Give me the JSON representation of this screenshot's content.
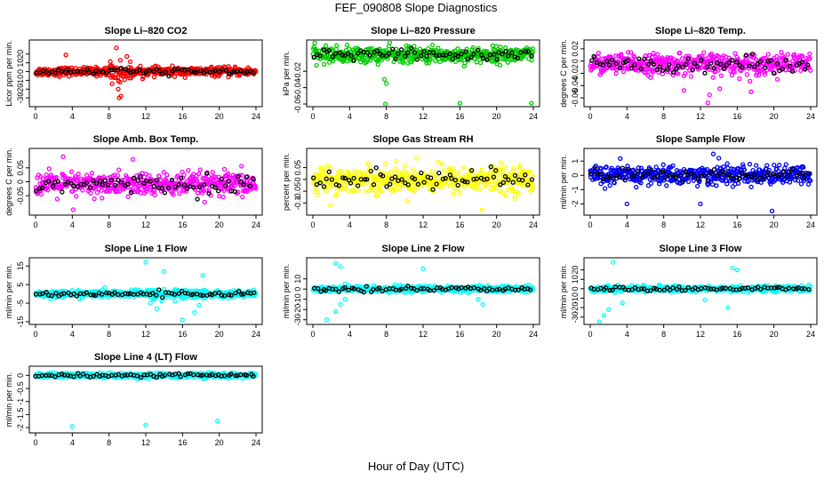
{
  "figure": {
    "title": "FEF_090808  Slope Diagnostics",
    "xlabel": "Hour of Day (UTC)"
  },
  "chart_data": [
    {
      "type": "scatter",
      "title": "Slope Li–820 CO2",
      "ylabel": "Licor ppm per min.",
      "xlim": [
        0,
        24
      ],
      "xticks": [
        0,
        4,
        8,
        12,
        16,
        20,
        24
      ],
      "ylim": [
        -37,
        33
      ],
      "yticks": [
        -30,
        -20,
        -10,
        0,
        10,
        20
      ],
      "color": "#ff0000",
      "spread": 4,
      "outliers": [
        [
          3.3,
          19
        ],
        [
          8.8,
          27
        ],
        [
          9.0,
          -20
        ],
        [
          9.1,
          -30
        ],
        [
          9.3,
          -28
        ],
        [
          9.2,
          -12
        ]
      ],
      "series": [
        {
          "color": "#ff0000",
          "description": "main points"
        },
        {
          "color": "#000000",
          "description": "black points"
        }
      ]
    },
    {
      "type": "scatter",
      "title": "Slope Li–820 Pressure",
      "ylabel": "kPa per min.",
      "xlim": [
        0,
        24
      ],
      "xticks": [
        0,
        4,
        8,
        12,
        16,
        20,
        24
      ],
      "ylim": [
        -0.06,
        0.015
      ],
      "yticks": [
        -0.06,
        -0.04,
        -0.02
      ],
      "color": "#00cc00",
      "spread": 0.008,
      "outliers": [
        [
          8.0,
          -0.035
        ],
        [
          7.8,
          -0.03
        ],
        [
          16.0,
          -0.059
        ],
        [
          7.9,
          -0.06
        ],
        [
          23.8,
          -0.059
        ]
      ],
      "series": [
        {
          "color": "#00cc00",
          "description": "main points"
        },
        {
          "color": "#000000",
          "description": "black points"
        }
      ]
    },
    {
      "type": "scatter",
      "title": "Slope Li–820 Temp.",
      "ylabel": "degrees C per min.",
      "xlim": [
        0,
        24
      ],
      "xticks": [
        0,
        4,
        8,
        12,
        16,
        20,
        24
      ],
      "ylim": [
        -0.07,
        0.03
      ],
      "yticks": [
        -0.06,
        -0.04,
        -0.02,
        0.0,
        0.02
      ],
      "color": "#ff00ff",
      "spread": 0.014,
      "outliers": [
        [
          12.8,
          -0.068
        ],
        [
          13.0,
          -0.055
        ],
        [
          10.2,
          -0.048
        ],
        [
          14.1,
          -0.045
        ],
        [
          17.5,
          -0.05
        ]
      ],
      "series": [
        {
          "color": "#ff00ff",
          "description": "main points"
        },
        {
          "color": "#000000",
          "description": "black points"
        }
      ]
    },
    {
      "type": "scatter",
      "title": "Slope Amb. Box Temp.",
      "ylabel": "degrees C per min.",
      "xlim": [
        0,
        24
      ],
      "xticks": [
        0,
        4,
        8,
        12,
        16,
        20,
        24
      ],
      "ylim": [
        -0.11,
        0.11
      ],
      "yticks": [
        -0.05,
        0.0,
        0.05
      ],
      "color": "#ff00ff",
      "spread": 0.035,
      "outliers": [
        [
          3.0,
          0.09
        ],
        [
          10.6,
          0.08
        ],
        [
          4.1,
          -0.1
        ]
      ],
      "series": [
        {
          "color": "#ff00ff",
          "description": "main points"
        },
        {
          "color": "#000000",
          "description": "black points"
        }
      ]
    },
    {
      "type": "scatter",
      "title": "Slope Gas Stream RH",
      "ylabel": "percent per min.",
      "xlim": [
        0,
        24
      ],
      "xticks": [
        0,
        4,
        8,
        12,
        16,
        20,
        24
      ],
      "ylim": [
        -0.14,
        0.12
      ],
      "yticks": [
        -0.1,
        -0.05,
        0.0,
        0.05
      ],
      "color": "#ffff00",
      "spread": 0.045,
      "outliers": [
        [
          18.4,
          -0.13
        ],
        [
          1.9,
          -0.11
        ],
        [
          11.3,
          0.09
        ]
      ],
      "series": [
        {
          "color": "#ffff00",
          "description": "main points"
        },
        {
          "color": "#000000",
          "description": "black points"
        }
      ]
    },
    {
      "type": "scatter",
      "title": "Slope Sample Flow",
      "ylabel": "ml/min per min.",
      "xlim": [
        0,
        24
      ],
      "xticks": [
        0,
        4,
        8,
        12,
        16,
        20,
        24
      ],
      "ylim": [
        -2.6,
        1.7
      ],
      "yticks": [
        -2,
        -1,
        0,
        1
      ],
      "color": "#0000ff",
      "spread": 0.55,
      "outliers": [
        [
          19.8,
          -2.5
        ],
        [
          12.0,
          -2.0
        ],
        [
          4.0,
          -2.0
        ],
        [
          13.4,
          1.5
        ],
        [
          14.0,
          1.2
        ]
      ],
      "series": [
        {
          "color": "#0000ff",
          "description": "main points"
        },
        {
          "color": "#000000",
          "description": "black points"
        }
      ]
    },
    {
      "type": "scatter",
      "title": "Slope Line 1 Flow",
      "ylabel": "ml/min per min.",
      "xlim": [
        0,
        24
      ],
      "xticks": [
        0,
        4,
        8,
        12,
        16,
        20,
        24
      ],
      "ylim": [
        -15,
        18
      ],
      "yticks": [
        -15,
        -5,
        5,
        15
      ],
      "color": "#00ffff",
      "spread": 1.5,
      "outliers": [
        [
          12.0,
          17
        ],
        [
          12.5,
          -5
        ],
        [
          13.2,
          -8
        ],
        [
          14.0,
          12
        ],
        [
          16.0,
          -14
        ],
        [
          17.3,
          -10
        ],
        [
          18.2,
          10
        ],
        [
          12.8,
          -3
        ],
        [
          15.2,
          -4
        ],
        [
          17.8,
          -6
        ]
      ],
      "series": [
        {
          "color": "#00ffff",
          "description": "main points"
        },
        {
          "color": "#000000",
          "description": "black points"
        }
      ]
    },
    {
      "type": "scatter",
      "title": "Slope Line 2 Flow",
      "ylabel": "ml/min per min.",
      "xlim": [
        0,
        24
      ],
      "xticks": [
        0,
        4,
        8,
        12,
        16,
        20,
        24
      ],
      "ylim": [
        -32,
        28
      ],
      "yticks": [
        -30,
        -20,
        -10,
        0,
        10
      ],
      "color": "#00ffff",
      "spread": 2.5,
      "outliers": [
        [
          1.5,
          -30
        ],
        [
          2.5,
          -22
        ],
        [
          3.0,
          -15
        ],
        [
          3.5,
          -10
        ],
        [
          2.5,
          25
        ],
        [
          3.0,
          22
        ],
        [
          3.5,
          5
        ],
        [
          12.0,
          20
        ],
        [
          18.0,
          -10
        ],
        [
          18.5,
          -15
        ]
      ],
      "series": [
        {
          "color": "#00ffff",
          "description": "main points"
        },
        {
          "color": "#000000",
          "description": "black points"
        }
      ]
    },
    {
      "type": "scatter",
      "title": "Slope Line 3 Flow",
      "ylabel": "ml/min per min.",
      "xlim": [
        0,
        24
      ],
      "xticks": [
        0,
        4,
        8,
        12,
        16,
        20,
        24
      ],
      "ylim": [
        -35,
        30
      ],
      "yticks": [
        -30,
        -20,
        -10,
        0,
        10,
        20
      ],
      "color": "#00ffff",
      "spread": 2.5,
      "outliers": [
        [
          1.0,
          -35
        ],
        [
          1.5,
          -28
        ],
        [
          2.0,
          -22
        ],
        [
          2.5,
          28
        ],
        [
          3.5,
          -15
        ],
        [
          15.5,
          22
        ],
        [
          16.0,
          20
        ],
        [
          15.0,
          -20
        ],
        [
          12.5,
          -12
        ]
      ],
      "series": [
        {
          "color": "#00ffff",
          "description": "main points"
        },
        {
          "color": "#000000",
          "description": "black points"
        }
      ]
    },
    {
      "type": "scatter",
      "title": "Slope Line 4 (LT) Flow",
      "ylabel": "ml/min per min.",
      "xlim": [
        0,
        24
      ],
      "xticks": [
        0,
        4,
        8,
        12,
        16,
        20,
        24
      ],
      "ylim": [
        -2.1,
        0.25
      ],
      "yticks": [
        -2.0,
        -1.5,
        -1.0,
        -0.5,
        0.0
      ],
      "color": "#00ffff",
      "spread": 0.08,
      "outliers": [
        [
          4.0,
          -1.95
        ],
        [
          12.0,
          -1.9
        ],
        [
          19.8,
          -1.75
        ]
      ],
      "series": [
        {
          "color": "#00ffff",
          "description": "main points"
        },
        {
          "color": "#000000",
          "description": "black points"
        }
      ]
    }
  ]
}
